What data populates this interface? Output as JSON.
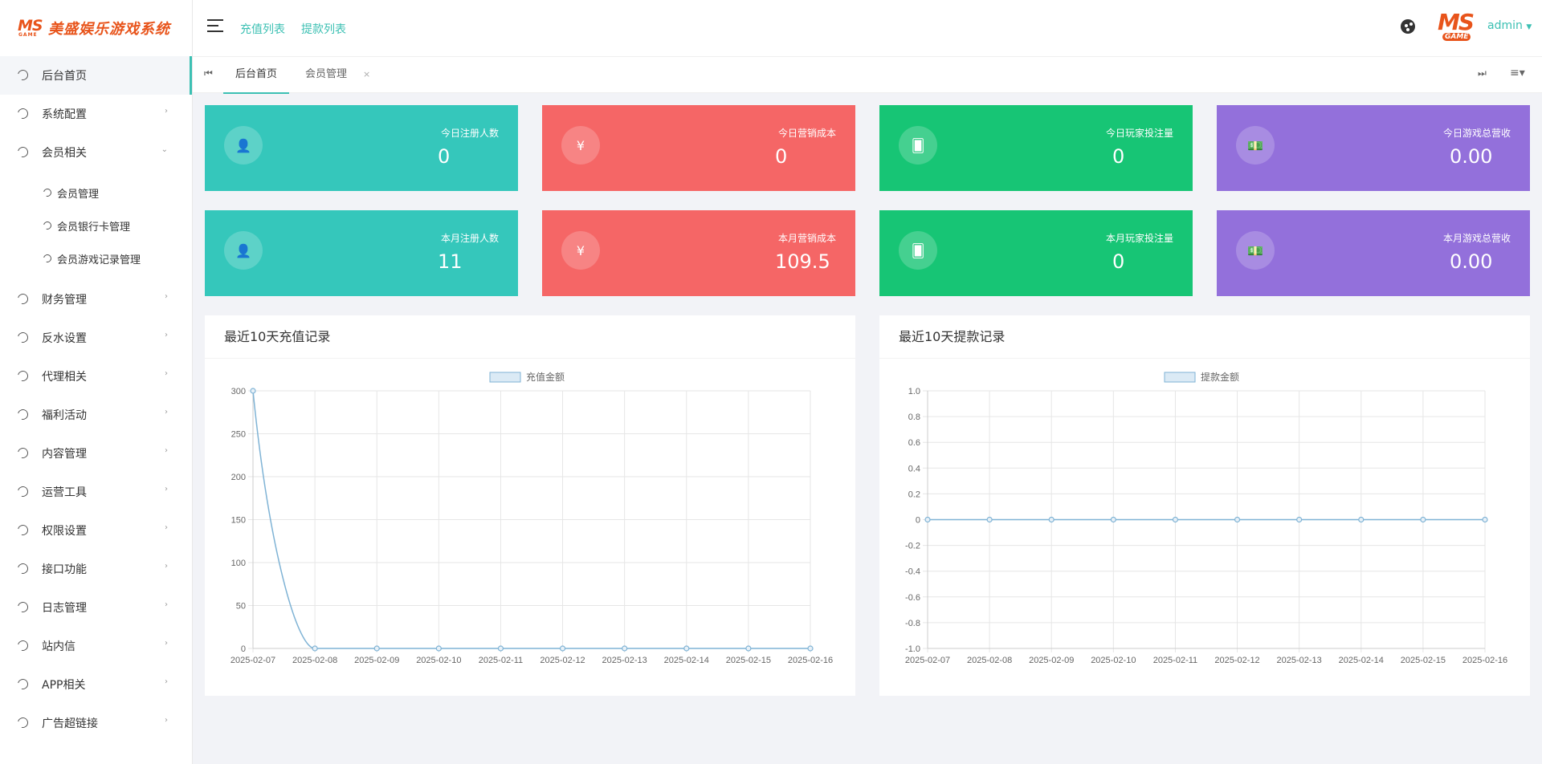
{
  "app": {
    "title": "美盛娱乐游戏系统",
    "logo_mark": "MS",
    "logo_sub": "GAME"
  },
  "header": {
    "links": [
      "充值列表",
      "提款列表"
    ],
    "user": "admin"
  },
  "sidebar": {
    "items": [
      {
        "label": "后台首页",
        "chevron": "",
        "active": true
      },
      {
        "label": "系统配置",
        "chevron": "›"
      },
      {
        "label": "会员相关",
        "chevron": "⌄"
      },
      {
        "label": "财务管理",
        "chevron": "›"
      },
      {
        "label": "反水设置",
        "chevron": "›"
      },
      {
        "label": "代理相关",
        "chevron": "›"
      },
      {
        "label": "福利活动",
        "chevron": "›"
      },
      {
        "label": "内容管理",
        "chevron": "›"
      },
      {
        "label": "运营工具",
        "chevron": "›"
      },
      {
        "label": "权限设置",
        "chevron": "›"
      },
      {
        "label": "接口功能",
        "chevron": "›"
      },
      {
        "label": "日志管理",
        "chevron": "›"
      },
      {
        "label": "站内信",
        "chevron": "›"
      },
      {
        "label": "APP相关",
        "chevron": "›"
      },
      {
        "label": "广告超链接",
        "chevron": "›"
      }
    ],
    "submenu": [
      "会员管理",
      "会员银行卡管理",
      "会员游戏记录管理"
    ]
  },
  "tabs": {
    "items": [
      {
        "label": "后台首页"
      },
      {
        "label": "会员管理",
        "close": "×"
      }
    ],
    "first_icon": "⏮",
    "last_icon": "⏭",
    "menu_icon": "≡▾"
  },
  "stats": [
    {
      "label": "今日注册人数",
      "value": "0",
      "icon": "user-icon",
      "glyph": "👤",
      "color": "#35c7bb"
    },
    {
      "label": "今日营销成本",
      "value": "0",
      "icon": "yen-icon",
      "glyph": "¥",
      "color": "#f56666"
    },
    {
      "label": "今日玩家投注量",
      "value": "0",
      "icon": "cards-icon",
      "glyph": "🂠",
      "color": "#17c575"
    },
    {
      "label": "今日游戏总营收",
      "value": "0.00",
      "icon": "money-icon",
      "glyph": "💵",
      "color": "#9370db"
    },
    {
      "label": "本月注册人数",
      "value": "11",
      "icon": "user-icon",
      "glyph": "👤",
      "color": "#35c7bb"
    },
    {
      "label": "本月营销成本",
      "value": "109.5",
      "icon": "yen-icon",
      "glyph": "¥",
      "color": "#f56666"
    },
    {
      "label": "本月玩家投注量",
      "value": "0",
      "icon": "cards-icon",
      "glyph": "🂠",
      "color": "#17c575"
    },
    {
      "label": "本月游戏总营收",
      "value": "0.00",
      "icon": "money-icon",
      "glyph": "💵",
      "color": "#9370db"
    }
  ],
  "panels": {
    "recharge_title": "最近10天充值记录",
    "withdraw_title": "最近10天提款记录"
  },
  "chart_data": [
    {
      "type": "line",
      "title": "",
      "categories": [
        "2025-02-07",
        "2025-02-08",
        "2025-02-09",
        "2025-02-10",
        "2025-02-11",
        "2025-02-12",
        "2025-02-13",
        "2025-02-14",
        "2025-02-15",
        "2025-02-16"
      ],
      "series": [
        {
          "name": "充值金额",
          "values": [
            300,
            0,
            0,
            0,
            0,
            0,
            0,
            0,
            0,
            0
          ]
        }
      ],
      "yticks": [
        "0",
        "50",
        "100",
        "150",
        "200",
        "250",
        "300"
      ],
      "ylim": [
        0,
        300
      ],
      "legend": "top-center",
      "grid": true,
      "color": "#7fb3d5"
    },
    {
      "type": "line",
      "title": "",
      "categories": [
        "2025-02-07",
        "2025-02-08",
        "2025-02-09",
        "2025-02-10",
        "2025-02-11",
        "2025-02-12",
        "2025-02-13",
        "2025-02-14",
        "2025-02-15",
        "2025-02-16"
      ],
      "series": [
        {
          "name": "提款金额",
          "values": [
            0,
            0,
            0,
            0,
            0,
            0,
            0,
            0,
            0,
            0
          ]
        }
      ],
      "yticks": [
        "-1.0",
        "-0.8",
        "-0.6",
        "-0.4",
        "-0.2",
        "0",
        "0.2",
        "0.4",
        "0.6",
        "0.8",
        "1.0"
      ],
      "ylim": [
        -1,
        1
      ],
      "legend": "top-center",
      "grid": true,
      "color": "#7fb3d5"
    }
  ]
}
